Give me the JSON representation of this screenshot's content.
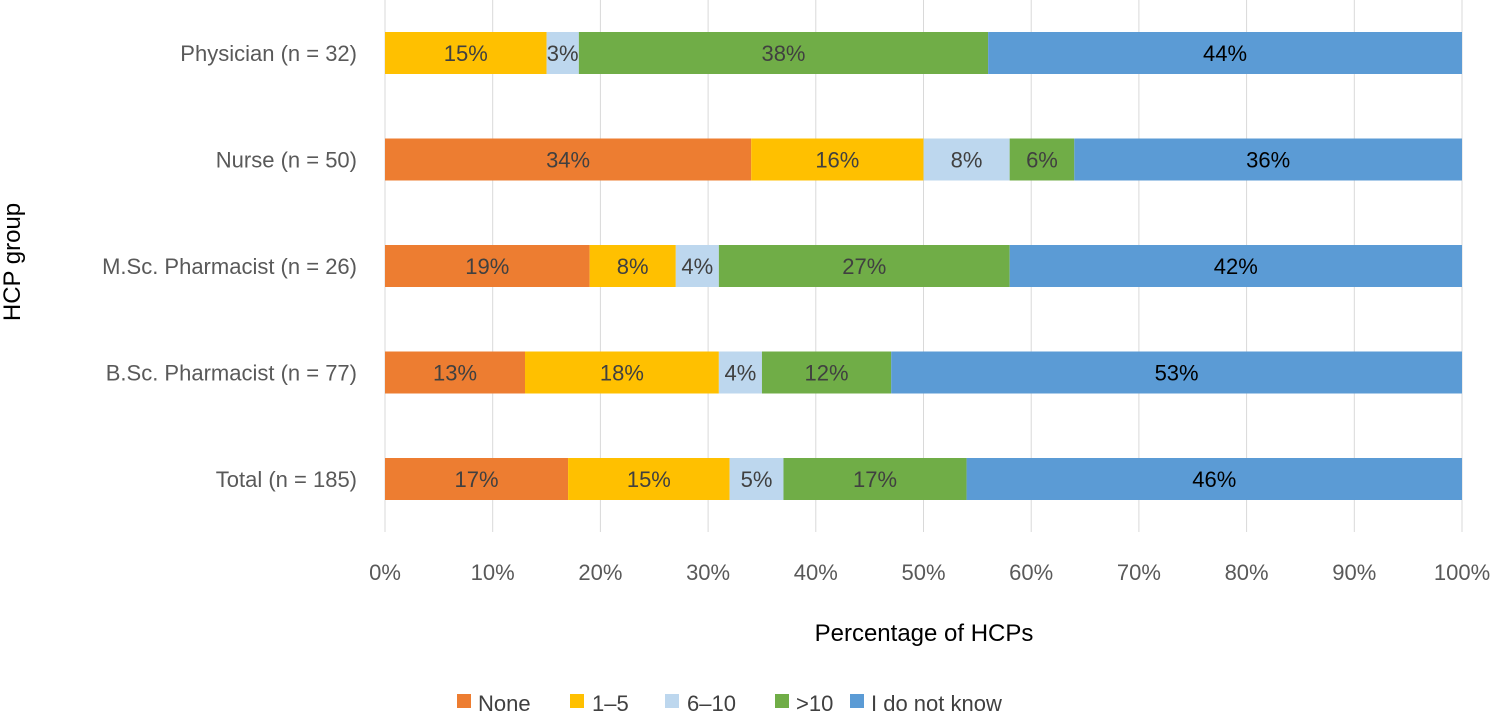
{
  "chart_data": {
    "type": "bar",
    "orientation": "horizontal",
    "stacked": "percent",
    "categories": [
      "Physician (n = 32)",
      "Nurse (n = 50)",
      "M.Sc. Pharmacist (n = 26)",
      "B.Sc. Pharmacist (n = 77)",
      "Total (n = 185)"
    ],
    "series": [
      {
        "name": "None",
        "color": "#ED7D31",
        "label_color": "#404040",
        "values": [
          0,
          34,
          19,
          13,
          17
        ]
      },
      {
        "name": "1–5",
        "color": "#FFC000",
        "label_color": "#404040",
        "values": [
          15,
          16,
          8,
          18,
          15
        ]
      },
      {
        "name": "6–10",
        "color": "#BDD7EE",
        "label_color": "#404040",
        "values": [
          3,
          8,
          4,
          4,
          5
        ]
      },
      {
        "name": ">10",
        "color": "#70AD47",
        "label_color": "#404040",
        "values": [
          38,
          6,
          27,
          12,
          17
        ]
      },
      {
        "name": "I do not know",
        "color": "#5B9BD5",
        "label_color": "#000000",
        "values": [
          44,
          36,
          42,
          53,
          46
        ]
      }
    ],
    "data_labels": [
      [
        "",
        "15%",
        "3%",
        "38%",
        "44%"
      ],
      [
        "34%",
        "16%",
        "8%",
        "6%",
        "36%"
      ],
      [
        "19%",
        "8%",
        "4%",
        "27%",
        "42%"
      ],
      [
        "13%",
        "18%",
        "4%",
        "12%",
        "53%"
      ],
      [
        "17%",
        "15%",
        "5%",
        "17%",
        "46%"
      ]
    ],
    "xlim": [
      0,
      100
    ],
    "xticks": [
      0,
      10,
      20,
      30,
      40,
      50,
      60,
      70,
      80,
      90,
      100
    ],
    "xtick_labels": [
      "0%",
      "10%",
      "20%",
      "30%",
      "40%",
      "50%",
      "60%",
      "70%",
      "80%",
      "90%",
      "100%"
    ],
    "xlabel": "Percentage of HCPs",
    "ylabel": "HCP group",
    "title": "",
    "grid": "vertical",
    "legend": "bottom"
  }
}
